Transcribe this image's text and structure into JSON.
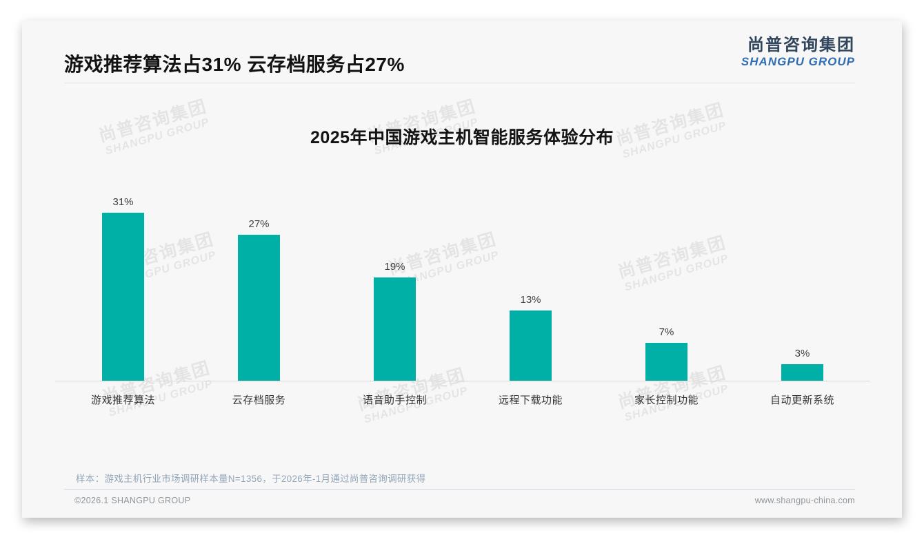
{
  "page": {
    "title": "游戏推荐算法占31% 云存档服务占27%",
    "logo": {
      "cn": "尚普咨询集团",
      "en": "SHANGPU GROUP"
    },
    "watermark": {
      "cn": "尚普咨询集团",
      "en": "SHANGPU GROUP"
    },
    "footnote": "样本：游戏主机行业市场调研样本量N=1356，于2026年-1月通过尚普咨询调研获得",
    "footer": {
      "left": "©2026.1 SHANGPU GROUP",
      "right": "www.shangpu-china.com"
    }
  },
  "colors": {
    "bar": "#00AFA5",
    "logo_cn": "#31455c",
    "logo_en": "#2f6db5",
    "slide_bg": "#f7f7f7",
    "axis": "#d8d8d8",
    "footnote_text": "#93a5b8"
  },
  "chart_data": {
    "type": "bar",
    "title": "2025年中国游戏主机智能服务体验分布",
    "categories": [
      "游戏推荐算法",
      "云存档服务",
      "语音助手控制",
      "远程下载功能",
      "家长控制功能",
      "自动更新系统"
    ],
    "values": [
      31,
      27,
      19,
      13,
      7,
      3
    ],
    "value_labels": [
      "31%",
      "27%",
      "19%",
      "13%",
      "7%",
      "3%"
    ],
    "unit": "%",
    "xlabel": "",
    "ylabel": "",
    "ylim": [
      0,
      36
    ],
    "grid": false,
    "legend": "none",
    "bar_color": "#00AFA5"
  }
}
